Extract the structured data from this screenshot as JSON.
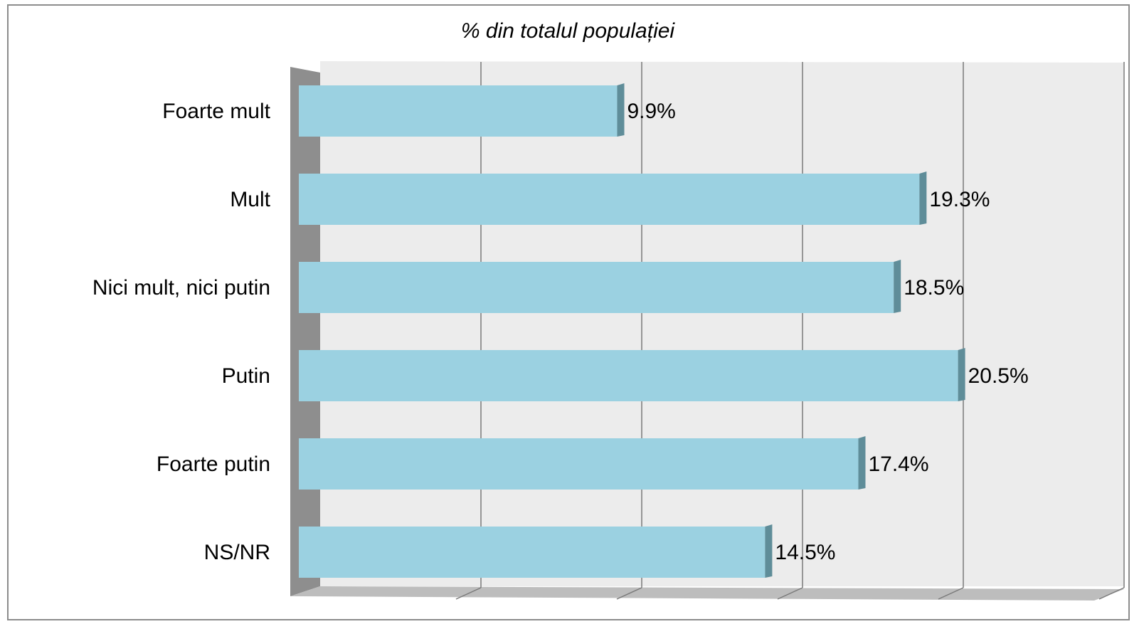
{
  "chart_data": {
    "type": "bar",
    "orientation": "horizontal",
    "style": "3d",
    "title": "% din totalul populației",
    "categories": [
      "Foarte mult",
      "Mult",
      "Nici mult, nici putin",
      "Putin",
      "Foarte putin",
      "NS/NR"
    ],
    "values": [
      9.9,
      19.3,
      18.5,
      20.5,
      17.4,
      14.5
    ],
    "data_labels": [
      "9.9%",
      "19.3%",
      "18.5%",
      "20.5%",
      "17.4%",
      "14.5%"
    ],
    "xlim": [
      0,
      25
    ],
    "grid": true,
    "legend": "none",
    "xlabel": "",
    "ylabel": ""
  },
  "colors": {
    "bar_face": "#9bd1e1",
    "bar_side": "#5f8d99",
    "plot_wall": "#ececec",
    "left_wall": "#8e8e8e",
    "gridline": "#7a7a7a",
    "floor": "#bdbdbd"
  }
}
